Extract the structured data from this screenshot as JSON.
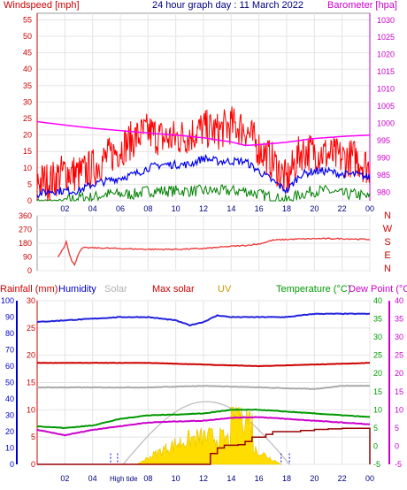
{
  "chart_data": [
    {
      "type": "line",
      "title": "24 hour graph day : 11 March 2022",
      "left_label": "Windspeed [mph]",
      "right_label": "Barometer [hpa]",
      "x_ticks": [
        "02",
        "04",
        "06",
        "08",
        "10",
        "12",
        "14",
        "16",
        "18",
        "20",
        "22",
        "00"
      ],
      "left_ticks": [
        "0",
        "5",
        "10",
        "15",
        "20",
        "25",
        "30",
        "35",
        "40",
        "45",
        "50",
        "55"
      ],
      "right_ticks": [
        "980",
        "985",
        "990",
        "995",
        "1000",
        "1005",
        "1010",
        "1015",
        "1020",
        "1025",
        "1030"
      ],
      "ylim_left": [
        0,
        57
      ],
      "ylim_right": [
        977.5,
        1032
      ],
      "colors": {
        "gust": "#ff0000",
        "speed": "#0000ee",
        "low": "#008000",
        "baro": "#ff00ff"
      },
      "series": [
        {
          "key": "gust",
          "x": [
            0,
            1,
            2,
            3,
            4,
            5,
            6,
            7,
            8,
            9,
            10,
            11,
            12,
            13,
            14,
            15,
            16,
            17,
            18,
            19,
            20,
            21,
            22,
            23,
            24
          ],
          "values": [
            6,
            6,
            9,
            8,
            10,
            13,
            16,
            19,
            21,
            19,
            19,
            20,
            22,
            21,
            23,
            22,
            16,
            12,
            6,
            15,
            15,
            14,
            13,
            13,
            10
          ]
        },
        {
          "key": "speed",
          "x": [
            0,
            1,
            2,
            3,
            4,
            5,
            6,
            7,
            8,
            9,
            10,
            11,
            12,
            13,
            14,
            15,
            16,
            17,
            18,
            19,
            20,
            21,
            22,
            23,
            24
          ],
          "values": [
            2,
            3,
            3,
            3,
            5,
            6,
            7,
            8,
            10,
            11,
            11,
            11,
            13,
            12,
            12,
            12,
            9,
            6,
            3,
            8,
            9,
            9,
            8,
            8,
            7
          ]
        },
        {
          "key": "low",
          "x": [
            0,
            1,
            2,
            3,
            4,
            5,
            6,
            7,
            8,
            9,
            10,
            11,
            12,
            13,
            14,
            15,
            16,
            17,
            18,
            19,
            20,
            21,
            22,
            23,
            24
          ],
          "values": [
            0,
            0,
            0,
            1,
            1,
            2,
            2,
            2,
            3,
            3,
            3,
            3,
            3,
            3,
            3,
            3,
            2,
            1,
            0,
            2,
            3,
            3,
            2,
            2,
            1
          ]
        },
        {
          "key": "baro",
          "x": [
            0,
            2,
            4,
            6,
            8,
            10,
            12,
            14,
            15,
            16,
            18,
            20,
            22,
            24
          ],
          "values": [
            1000.5,
            999.5,
            998.6,
            997.9,
            997.2,
            996.6,
            995.8,
            994.6,
            993.6,
            993.8,
            994.5,
            995.6,
            996.2,
            996.6
          ]
        }
      ]
    },
    {
      "type": "line",
      "x_ticks": [
        "02",
        "04",
        "06",
        "08",
        "10",
        "12",
        "14",
        "16",
        "18",
        "20",
        "22",
        "00"
      ],
      "left_ticks": [
        "0",
        "90",
        "180",
        "270",
        "360"
      ],
      "compass": [
        "N",
        "W",
        "S",
        "E",
        "N"
      ],
      "ylim": [
        0,
        360
      ],
      "series": [
        {
          "key": "direction",
          "color": "#ee3333",
          "x": [
            1.5,
            1.8,
            2.0,
            2.1,
            2.3,
            2.5,
            2.7,
            3.0,
            3.3,
            4,
            6,
            8,
            10,
            12,
            14,
            15,
            16,
            17,
            18,
            20,
            22,
            24
          ],
          "values": [
            90,
            135,
            165,
            195,
            120,
            60,
            40,
            115,
            150,
            150,
            145,
            140,
            140,
            145,
            160,
            165,
            175,
            200,
            205,
            210,
            210,
            205
          ]
        }
      ]
    },
    {
      "type": "line",
      "headers": [
        "Rainfall (mm)",
        "Humidity",
        "Solar",
        "Max solar",
        "UV",
        "Temperature (°C)",
        "Dew Point (°C)"
      ],
      "x_ticks": [
        "02",
        "04",
        "06",
        "08",
        "10",
        "12",
        "14",
        "16",
        "18",
        "20",
        "22",
        "00"
      ],
      "rain_ticks": [
        "0",
        "5",
        "10",
        "15",
        "20",
        "25",
        "30"
      ],
      "humidity_ticks": [
        "0",
        "10",
        "20",
        "30",
        "40",
        "50",
        "60",
        "70",
        "80",
        "90",
        "100"
      ],
      "temp_ticks": [
        "-5",
        "0",
        "5",
        "10",
        "15",
        "20",
        "25",
        "30",
        "35",
        "40"
      ],
      "dew_ticks": [
        "-5",
        "0",
        "5",
        "10",
        "15",
        "20",
        "25",
        "30",
        "35",
        "40"
      ],
      "ylim_rain": [
        0,
        30
      ],
      "ylim_temp": [
        -5,
        40
      ],
      "markers": [
        "High tide",
        "High tide"
      ],
      "colors": {
        "humidity": "#2222dd",
        "maxsolar": "#cc0000",
        "solar": "#aaaaaa",
        "temp": "#009900",
        "dew": "#cc00cc",
        "rain": "#990000",
        "uv": "#ffdd00"
      },
      "series": [
        {
          "key": "humidity",
          "x": [
            0,
            2,
            4,
            6,
            8,
            10,
            11,
            12,
            13,
            14,
            16,
            18,
            20,
            22,
            24
          ],
          "values": [
            87,
            88,
            89,
            90,
            90,
            88,
            85,
            87,
            91,
            90,
            90,
            90,
            92,
            92,
            92
          ]
        },
        {
          "key": "maxsolar",
          "x": [
            0,
            4,
            8,
            12,
            16,
            20,
            24
          ],
          "values": [
            62,
            62,
            62,
            61,
            60,
            61,
            62
          ]
        },
        {
          "key": "solar",
          "x": [
            0,
            4,
            8,
            12,
            16,
            20,
            22,
            24
          ],
          "values": [
            47,
            47,
            47,
            48,
            47,
            46,
            48,
            48
          ]
        },
        {
          "key": "temp",
          "x": [
            0,
            2,
            4,
            6,
            8,
            10,
            12,
            14,
            16,
            18,
            20,
            22,
            24
          ],
          "values": [
            5.5,
            5,
            5.7,
            7.5,
            8.5,
            8.7,
            9,
            10,
            10,
            9.5,
            9,
            8.5,
            8
          ]
        },
        {
          "key": "dew",
          "x": [
            0,
            2,
            4,
            6,
            8,
            10,
            12,
            14,
            16,
            18,
            20,
            22,
            24
          ],
          "values": [
            4.5,
            3,
            4.5,
            5.5,
            6.5,
            6.8,
            7,
            7.8,
            8,
            7.5,
            7,
            6.5,
            6
          ]
        },
        {
          "key": "rain",
          "x": [
            0,
            11.2,
            12.5,
            13,
            13.5,
            14.5,
            15,
            15.5,
            16.5,
            17,
            18.5,
            19,
            20,
            21,
            22,
            23,
            24
          ],
          "values": [
            0,
            0,
            2,
            3,
            3.5,
            3.6,
            4.2,
            5,
            5.5,
            6,
            6,
            6.2,
            6.4,
            6.5,
            6.6,
            6.6,
            6.6
          ]
        }
      ]
    }
  ]
}
